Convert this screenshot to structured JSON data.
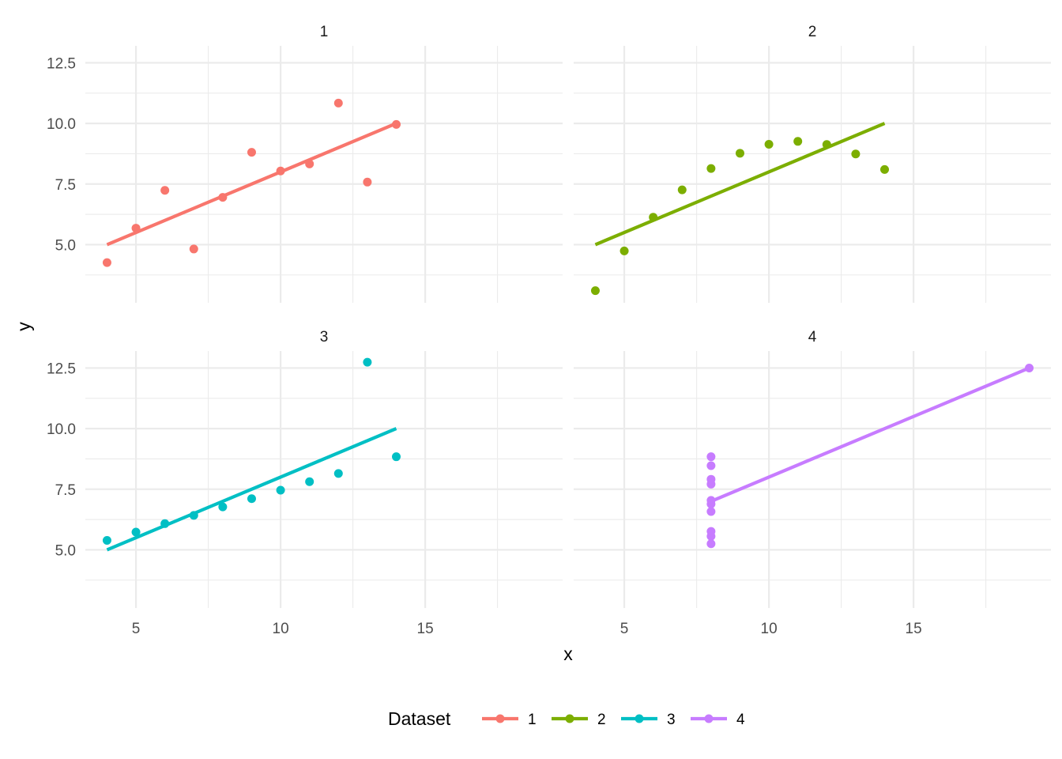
{
  "chart_data": {
    "type": "scatter",
    "facets": [
      "1",
      "2",
      "3",
      "4"
    ],
    "xlabel": "x",
    "ylabel": "y",
    "xlim": [
      3.25,
      19.75
    ],
    "ylim": [
      2.6,
      13.2
    ],
    "x_ticks": [
      5,
      10,
      15
    ],
    "x_tick_labels": [
      "5",
      "10",
      "15"
    ],
    "y_ticks": [
      5,
      7.5,
      10,
      12.5
    ],
    "y_tick_labels": [
      "5.0",
      "7.5",
      "10.0",
      "12.5"
    ],
    "grid": true,
    "legend": {
      "title": "Dataset",
      "position": "bottom",
      "entries": [
        "1",
        "2",
        "3",
        "4"
      ]
    },
    "colors": {
      "1": "#F8766D",
      "2": "#7CAE00",
      "3": "#00BFC4",
      "4": "#C77CFF"
    },
    "series": [
      {
        "name": "1",
        "x": [
          10,
          8,
          13,
          9,
          11,
          14,
          6,
          4,
          12,
          7,
          5
        ],
        "y": [
          8.04,
          6.95,
          7.58,
          8.81,
          8.33,
          9.96,
          7.24,
          4.26,
          10.84,
          4.82,
          5.68
        ],
        "fit": {
          "x": [
            4,
            14
          ],
          "y": [
            5.0,
            10.0
          ]
        }
      },
      {
        "name": "2",
        "x": [
          10,
          8,
          13,
          9,
          11,
          14,
          6,
          4,
          12,
          7,
          5
        ],
        "y": [
          9.14,
          8.14,
          8.74,
          8.77,
          9.26,
          8.1,
          6.13,
          3.1,
          9.13,
          7.26,
          4.74
        ],
        "fit": {
          "x": [
            4,
            14
          ],
          "y": [
            5.0,
            10.0
          ]
        }
      },
      {
        "name": "3",
        "x": [
          10,
          8,
          13,
          9,
          11,
          14,
          6,
          4,
          12,
          7,
          5
        ],
        "y": [
          7.46,
          6.77,
          12.74,
          7.11,
          7.81,
          8.84,
          6.08,
          5.39,
          8.15,
          6.42,
          5.73
        ],
        "fit": {
          "x": [
            4,
            14
          ],
          "y": [
            5.0,
            10.0
          ]
        }
      },
      {
        "name": "4",
        "x": [
          8,
          8,
          8,
          8,
          8,
          8,
          8,
          19,
          8,
          8,
          8
        ],
        "y": [
          6.58,
          5.76,
          7.71,
          8.84,
          8.47,
          7.04,
          5.25,
          12.5,
          5.56,
          7.91,
          6.89
        ],
        "fit": {
          "x": [
            8,
            19
          ],
          "y": [
            7.0,
            12.5
          ]
        }
      }
    ]
  }
}
